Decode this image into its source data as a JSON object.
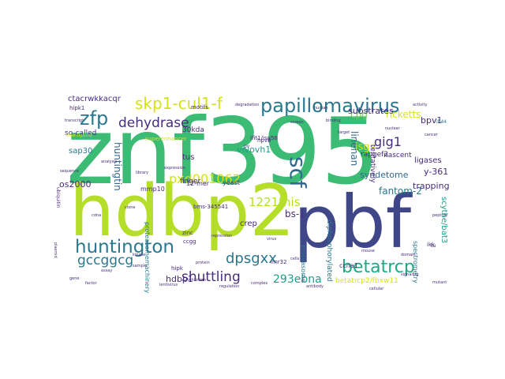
{
  "words": {
    "znf395": "znf395",
    "hdbp2": "hdbp2",
    "pbf": "pbf",
    "scf": "scf",
    "papillomavirus": "papillomavirus",
    "skp1_cul1_f": "skp1-cul1-f",
    "zfp": "zfp",
    "dehydrase": "dehydrase",
    "huntington": "huntington",
    "gccggcg": "gccggcg",
    "betatrcp": "betatrcp",
    "gig1": "gig1",
    "dpsgxx": "dpsgxx",
    "shuttling": "shuttling",
    "pxd001062": "pxd001062",
    "this_1221": "1221this",
    "ebna_293": "293ebna",
    "ctacrwkkacqr": "ctacrwkkacqr",
    "ricketts": "ricketts",
    "cpg": "cpg",
    "bpv1": "bpv1",
    "linehan": "linehan",
    "isgs": "isgs",
    "substrates": "substrates",
    "so_called": "so-called",
    "huntingtin": "huntingtin",
    "vivovh1": "vivovh1",
    "tus": "tus",
    "sap30": "sap30",
    "os2000": "os2000",
    "fantom_2": "fantom-2",
    "bs_1": "bs-1",
    "crep": "crep",
    "hdbp1": "hdbp1",
    "trapping": "trapping",
    "y_361": "y-361",
    "ligases": "ligases",
    "syndetome": "syndetome",
    "rapgef2": "rapgef2",
    "tentatively": "tentatively",
    "nascent": "nascent",
    "kda_30": "30kda",
    "superenhancer": "superenhancer",
    "hpv8": "hpv8",
    "ifit1_isg56": "ifit1/isg56",
    "mmp10": "mmp10",
    "finger": "finger",
    "yeast": "yeast",
    "mer_12": "12-mer",
    "zinc": "zinc",
    "ccgg": "ccgg",
    "bms_345541": "bms-345541",
    "imr32": "imr32",
    "betatrcp2_fbxw11": "betatrcp2/fbxw11",
    "ccna1": "ccna1",
    "scythe_bat3": "scythe/bat3",
    "ikk": "ikk",
    "hipk": "hipk",
    "hipk1": "hipk1",
    "motifs": "motifs",
    "diphosphorylated": "diphosphorylated",
    "spectrometry": "spectrometry",
    "proteasome": "proteasome",
    "proteasomemachinery": "proteasomemachinery",
    "one_hybrid": "one-hybrid",
    "pv": "pv",
    "ifi44": "ifi44",
    "tu": "tu",
    "ubiquitin": "ubiquitin",
    "plasmid": "plasmid",
    "sample": "sample",
    "lentivirus": "lentivirus",
    "inhibition": "inhibition",
    "repression": "repression",
    "transcript": "transcript",
    "degradation": "degradation",
    "human": "human",
    "binding": "binding",
    "cells": "cells",
    "protein": "protein",
    "kinase": "kinase",
    "nuclear": "nuclear",
    "domain": "domain",
    "mouse": "mouse",
    "assay": "assay",
    "gene": "gene",
    "factor": "factor",
    "regulation": "regulation",
    "complex": "complex",
    "signaling": "signaling",
    "mutant": "mutant",
    "activity": "activity",
    "cancer": "cancer",
    "expression": "expression",
    "library": "library",
    "cdna": "cdna",
    "clone": "clone",
    "screen": "screen",
    "target": "target",
    "virus": "virus",
    "antibody": "antibody",
    "cellular": "cellular",
    "analysis": "analysis",
    "sequence": "sequence",
    "peptide": "peptide"
  },
  "colors": {
    "green": "#3cbb75",
    "lime": "#b5de2b",
    "navy": "#3f4788",
    "teal": "#2a788e",
    "teal_green": "#22a884",
    "dark_green": "#1f9e89",
    "purple": "#472d7b",
    "blue": "#31688e",
    "yellow": "#d4e21a",
    "mint": "#6ece58"
  }
}
